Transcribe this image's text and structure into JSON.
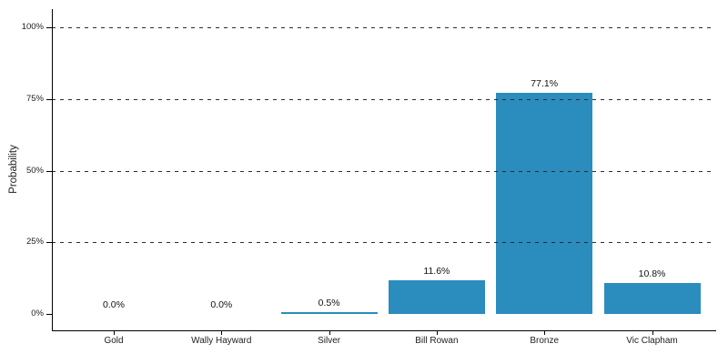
{
  "chart_data": {
    "type": "bar",
    "title": "",
    "xlabel": "",
    "ylabel": "Probability",
    "categories": [
      "Gold",
      "Wally Hayward",
      "Silver",
      "Bill Rowan",
      "Bronze",
      "Vic Clapham"
    ],
    "values": [
      0.0,
      0.0,
      0.5,
      11.6,
      77.1,
      10.8
    ],
    "bar_labels": [
      "0.0%",
      "0.0%",
      "0.5%",
      "11.6%",
      "77.1%",
      "10.8%"
    ],
    "y_tick_values": [
      0,
      25,
      50,
      75,
      100
    ],
    "y_tick_labels": [
      "0%",
      "25%",
      "50%",
      "75%",
      "100%"
    ],
    "ylim": [
      0,
      100
    ],
    "grid": {
      "horizontal": true,
      "style": "dashed",
      "at": [
        25,
        50,
        75,
        100
      ]
    },
    "legend": {
      "visible": false
    },
    "colors": {
      "bar": "#2b8cbe",
      "axis": "#000000",
      "gridline": "#2b2b2b",
      "text": "#1f1f1f",
      "background": "#ffffff"
    }
  }
}
